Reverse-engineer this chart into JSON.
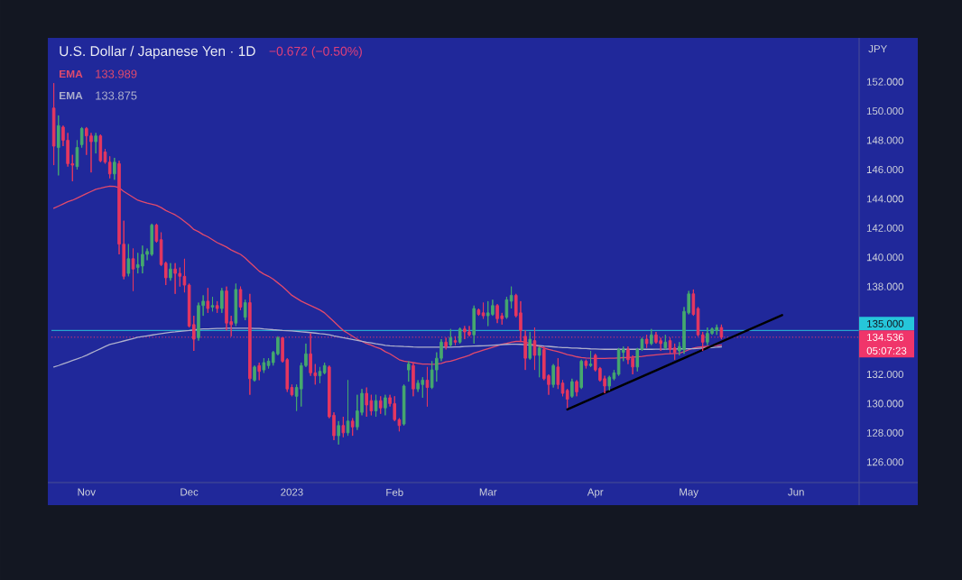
{
  "chart_data": {
    "type": "candlestick",
    "title": "U.S. Dollar / Japanese Yen · 1D",
    "subtitle": "−0.672 (−0.50%)",
    "ylabel": "JPY",
    "categories": [
      null,
      null,
      null,
      null,
      null,
      null,
      null,
      "Nov",
      null,
      null,
      null,
      null,
      null,
      null,
      null,
      null,
      null,
      null,
      null,
      null,
      null,
      null,
      null,
      null,
      null,
      null,
      null,
      null,
      null,
      "Dec",
      null,
      null,
      null,
      null,
      null,
      null,
      null,
      null,
      null,
      null,
      null,
      null,
      null,
      null,
      null,
      null,
      null,
      null,
      null,
      null,
      null,
      "2023",
      null,
      null,
      null,
      null,
      null,
      null,
      null,
      null,
      null,
      null,
      null,
      null,
      null,
      null,
      null,
      null,
      null,
      null,
      null,
      null,
      null,
      "Feb",
      null,
      null,
      null,
      null,
      null,
      null,
      null,
      null,
      null,
      null,
      null,
      null,
      null,
      null,
      null,
      null,
      null,
      null,
      null,
      "Mar",
      null,
      null,
      null,
      null,
      null,
      null,
      null,
      null,
      null,
      null,
      null,
      null,
      null,
      null,
      null,
      null,
      null,
      null,
      null,
      null,
      null,
      null,
      "Apr",
      null,
      null,
      null,
      null,
      null,
      null,
      null,
      null,
      null,
      null,
      null,
      null,
      null,
      null,
      null,
      null,
      null,
      null,
      null,
      "May",
      null,
      null,
      null,
      null,
      null,
      null,
      null,
      null,
      null,
      null,
      null,
      null,
      null,
      null,
      null,
      null,
      null,
      null,
      null,
      null,
      null,
      null,
      "Jun",
      null,
      null,
      null,
      null,
      null,
      null,
      null,
      null,
      null,
      null,
      null,
      null,
      null
    ],
    "ohlc": [
      [
        150.2,
        151.9,
        146.3,
        147.6
      ],
      [
        147.5,
        149.7,
        145.6,
        149.0
      ],
      [
        148.9,
        149.0,
        147.6,
        148.0
      ],
      [
        148.0,
        148.5,
        146.2,
        146.4
      ],
      [
        146.4,
        147.0,
        145.2,
        146.3
      ],
      [
        146.2,
        148.0,
        146.0,
        147.5
      ],
      [
        147.7,
        148.9,
        147.5,
        148.8
      ],
      [
        148.8,
        148.9,
        147.0,
        148.3
      ],
      [
        148.3,
        148.5,
        145.8,
        147.9
      ],
      [
        147.9,
        148.5,
        147.1,
        148.3
      ],
      [
        148.3,
        148.4,
        146.5,
        146.6
      ],
      [
        147.2,
        147.4,
        146.4,
        146.5
      ],
      [
        146.5,
        146.9,
        145.4,
        145.7
      ],
      [
        145.7,
        146.8,
        145.3,
        146.5
      ],
      [
        146.4,
        146.6,
        140.2,
        140.9
      ],
      [
        140.9,
        142.5,
        138.5,
        138.7
      ],
      [
        138.9,
        140.9,
        138.7,
        139.9
      ],
      [
        139.9,
        140.6,
        137.7,
        139.2
      ],
      [
        139.3,
        140.3,
        138.9,
        139.5
      ],
      [
        139.4,
        140.8,
        138.9,
        140.2
      ],
      [
        140.2,
        140.6,
        139.8,
        140.4
      ],
      [
        140.2,
        142.3,
        140.1,
        142.2
      ],
      [
        142.2,
        142.3,
        141.0,
        141.1
      ],
      [
        141.2,
        141.7,
        139.4,
        139.5
      ],
      [
        139.6,
        139.7,
        138.1,
        138.6
      ],
      [
        138.6,
        139.6,
        138.4,
        139.2
      ],
      [
        139.2,
        139.6,
        137.5,
        138.9
      ],
      [
        138.9,
        139.3,
        138.0,
        138.7
      ],
      [
        138.7,
        139.9,
        137.6,
        138.1
      ],
      [
        138.1,
        138.2,
        135.2,
        135.3
      ],
      [
        135.4,
        136.0,
        133.6,
        134.4
      ],
      [
        134.5,
        136.9,
        134.3,
        136.7
      ],
      [
        136.7,
        137.4,
        136.0,
        137.0
      ],
      [
        137.0,
        137.9,
        136.2,
        136.5
      ],
      [
        136.6,
        137.3,
        136.3,
        136.7
      ],
      [
        136.7,
        137.0,
        136.2,
        136.5
      ],
      [
        136.5,
        137.9,
        136.2,
        137.7
      ],
      [
        137.7,
        138.0,
        135.0,
        135.5
      ],
      [
        135.6,
        136.0,
        134.6,
        135.4
      ],
      [
        135.5,
        138.2,
        135.3,
        137.8
      ],
      [
        137.8,
        138.0,
        136.4,
        136.6
      ],
      [
        135.9,
        137.1,
        135.7,
        136.9
      ],
      [
        136.9,
        137.5,
        130.6,
        131.7
      ],
      [
        131.6,
        132.6,
        131.5,
        132.5
      ],
      [
        132.6,
        132.8,
        131.6,
        132.2
      ],
      [
        132.3,
        133.1,
        132.1,
        132.8
      ],
      [
        132.6,
        133.1,
        132.4,
        132.9
      ],
      [
        132.8,
        133.6,
        132.6,
        133.5
      ],
      [
        133.4,
        134.6,
        133.3,
        134.5
      ],
      [
        134.5,
        134.5,
        132.8,
        132.9
      ],
      [
        133.0,
        133.1,
        130.8,
        131.0
      ],
      [
        131.1,
        131.3,
        130.5,
        130.6
      ],
      [
        130.5,
        131.3,
        129.5,
        131.1
      ],
      [
        131.0,
        132.8,
        129.8,
        132.6
      ],
      [
        132.6,
        134.1,
        132.5,
        133.4
      ],
      [
        133.4,
        134.8,
        131.9,
        132.1
      ],
      [
        132.1,
        132.7,
        131.3,
        131.9
      ],
      [
        131.9,
        132.5,
        131.4,
        132.2
      ],
      [
        132.1,
        132.8,
        132.0,
        132.6
      ],
      [
        132.5,
        132.6,
        129.0,
        129.1
      ],
      [
        129.2,
        129.4,
        127.5,
        127.8
      ],
      [
        127.8,
        128.8,
        127.2,
        128.5
      ],
      [
        128.5,
        129.1,
        127.7,
        128.0
      ],
      [
        128.0,
        131.6,
        127.8,
        128.8
      ],
      [
        128.8,
        129.0,
        127.8,
        128.4
      ],
      [
        128.4,
        130.6,
        128.2,
        129.5
      ],
      [
        129.4,
        131.0,
        129.2,
        130.7
      ],
      [
        130.7,
        131.1,
        129.1,
        129.9
      ],
      [
        130.2,
        130.6,
        129.2,
        129.5
      ],
      [
        129.5,
        130.6,
        129.1,
        130.2
      ],
      [
        130.2,
        130.5,
        129.3,
        129.7
      ],
      [
        129.7,
        130.6,
        129.2,
        130.4
      ],
      [
        130.4,
        130.6,
        129.8,
        130.0
      ],
      [
        130.0,
        130.5,
        128.8,
        128.9
      ],
      [
        128.9,
        129.0,
        128.1,
        128.5
      ],
      [
        128.6,
        131.3,
        128.5,
        131.2
      ],
      [
        132.3,
        132.9,
        131.5,
        132.7
      ],
      [
        132.6,
        132.8,
        130.5,
        131.0
      ],
      [
        131.0,
        131.6,
        130.8,
        131.4
      ],
      [
        131.3,
        131.8,
        130.4,
        131.6
      ],
      [
        131.6,
        132.5,
        129.8,
        131.1
      ],
      [
        131.1,
        132.9,
        131.0,
        132.3
      ],
      [
        132.3,
        133.5,
        131.5,
        133.1
      ],
      [
        133.1,
        134.4,
        132.9,
        134.2
      ],
      [
        134.2,
        134.5,
        133.7,
        133.9
      ],
      [
        134.0,
        135.1,
        133.9,
        134.5
      ],
      [
        134.3,
        134.6,
        134.0,
        134.2
      ],
      [
        134.2,
        135.2,
        134.1,
        135.1
      ],
      [
        135.1,
        135.3,
        134.4,
        134.9
      ],
      [
        134.9,
        135.3,
        134.6,
        134.7
      ],
      [
        134.7,
        136.7,
        134.1,
        136.5
      ],
      [
        136.4,
        136.5,
        136.0,
        136.1
      ],
      [
        136.2,
        136.9,
        135.8,
        136.0
      ],
      [
        136.0,
        137.0,
        135.3,
        136.2
      ],
      [
        136.1,
        137.1,
        136.0,
        136.7
      ],
      [
        136.7,
        136.8,
        135.5,
        135.8
      ],
      [
        136.0,
        136.2,
        135.4,
        135.8
      ],
      [
        135.9,
        137.3,
        135.8,
        137.1
      ],
      [
        137.0,
        138.0,
        136.5,
        137.4
      ],
      [
        137.4,
        137.5,
        135.9,
        136.0
      ],
      [
        136.2,
        137.0,
        134.2,
        135.0
      ],
      [
        134.6,
        135.0,
        132.3,
        133.1
      ],
      [
        133.1,
        134.9,
        133.0,
        134.4
      ],
      [
        134.3,
        135.2,
        132.3,
        133.3
      ],
      [
        133.3,
        133.9,
        131.8,
        133.8
      ],
      [
        133.7,
        133.9,
        131.6,
        131.7
      ],
      [
        131.9,
        132.0,
        130.6,
        131.3
      ],
      [
        131.3,
        132.7,
        131.1,
        132.6
      ],
      [
        132.5,
        133.1,
        131.0,
        131.3
      ],
      [
        131.4,
        131.6,
        130.5,
        130.7
      ],
      [
        130.9,
        131.0,
        129.7,
        130.3
      ],
      [
        130.5,
        131.7,
        130.4,
        131.5
      ],
      [
        131.5,
        131.6,
        130.5,
        130.8
      ],
      [
        131.1,
        133.0,
        131.0,
        132.9
      ],
      [
        132.9,
        133.0,
        132.4,
        132.6
      ],
      [
        132.6,
        133.6,
        132.5,
        132.7
      ],
      [
        133.3,
        133.4,
        132.2,
        132.3
      ],
      [
        132.4,
        132.5,
        131.5,
        131.6
      ],
      [
        131.7,
        131.9,
        130.7,
        131.2
      ],
      [
        131.2,
        131.9,
        130.9,
        131.8
      ],
      [
        131.7,
        132.3,
        131.6,
        132.1
      ],
      [
        132.0,
        133.8,
        131.9,
        133.7
      ],
      [
        133.5,
        133.9,
        132.9,
        133.7
      ],
      [
        133.7,
        133.9,
        132.7,
        133.0
      ],
      [
        133.1,
        133.3,
        132.0,
        132.5
      ],
      [
        132.5,
        133.8,
        132.2,
        133.7
      ],
      [
        133.7,
        134.5,
        133.6,
        134.4
      ],
      [
        134.4,
        134.7,
        133.8,
        134.1
      ],
      [
        134.1,
        135.1,
        134.0,
        134.7
      ],
      [
        134.7,
        134.9,
        134.1,
        134.2
      ],
      [
        134.3,
        134.5,
        133.6,
        134.1
      ],
      [
        133.8,
        134.7,
        133.7,
        134.2
      ],
      [
        134.3,
        134.5,
        133.4,
        133.7
      ],
      [
        133.8,
        134.1,
        133.0,
        133.5
      ],
      [
        133.6,
        134.2,
        133.3,
        133.9
      ],
      [
        133.7,
        136.6,
        133.4,
        136.3
      ],
      [
        136.2,
        137.7,
        136.1,
        137.5
      ],
      [
        137.5,
        137.8,
        136.0,
        136.1
      ],
      [
        136.5,
        136.6,
        134.6,
        134.7
      ],
      [
        134.7,
        134.9,
        133.6,
        134.2
      ],
      [
        134.2,
        135.2,
        134.0,
        134.8
      ],
      [
        134.8,
        135.2,
        134.7,
        135.1
      ],
      [
        135.0,
        135.4,
        134.7,
        135.2
      ],
      [
        135.2,
        135.4,
        134.4,
        134.536
      ],
      null,
      null,
      null,
      null,
      null,
      null,
      null,
      null,
      null,
      null,
      null,
      null,
      null,
      null,
      null,
      null,
      null,
      null,
      null,
      null,
      null,
      null,
      null,
      null,
      null,
      null,
      null,
      null,
      null
    ],
    "colors": [
      "#e6375f",
      "#45a96e",
      "#e6375f",
      "#e6375f",
      "#e6375f",
      "#45a96e",
      "#45a96e",
      "#e6375f",
      "#e6375f",
      "#45a96e",
      "#e6375f",
      "#e6375f",
      "#e6375f",
      "#45a96e",
      "#e6375f",
      "#e6375f",
      "#45a96e",
      "#e6375f",
      "#45a96e",
      "#45a96e",
      "#45a96e",
      "#45a96e",
      "#e6375f",
      "#e6375f",
      "#e6375f",
      "#45a96e",
      "#e6375f",
      "#e6375f",
      "#e6375f",
      "#e6375f",
      "#e6375f",
      "#45a96e",
      "#45a96e",
      "#e6375f",
      "#45a96e",
      "#e6375f",
      "#45a96e",
      "#e6375f",
      "#e6375f",
      "#45a96e",
      "#e6375f",
      "#45a96e",
      "#e6375f",
      "#45a96e",
      "#e6375f",
      "#45a96e",
      "#45a96e",
      "#45a96e",
      "#45a96e",
      "#e6375f",
      "#e6375f",
      "#e6375f",
      "#45a96e",
      "#45a96e",
      "#45a96e",
      "#e6375f",
      "#e6375f",
      "#45a96e",
      "#45a96e",
      "#e6375f",
      "#e6375f",
      "#45a96e",
      "#e6375f",
      "#45a96e",
      "#e6375f",
      "#45a96e",
      "#45a96e",
      "#e6375f",
      "#e6375f",
      "#45a96e",
      "#e6375f",
      "#45a96e",
      "#e6375f",
      "#e6375f",
      "#e6375f",
      "#45a96e",
      "#45a96e",
      "#e6375f",
      "#45a96e",
      "#45a96e",
      "#e6375f",
      "#45a96e",
      "#45a96e",
      "#45a96e",
      "#e6375f",
      "#45a96e",
      "#e6375f",
      "#45a96e",
      "#e6375f",
      "#e6375f",
      "#45a96e",
      "#e6375f",
      "#e6375f",
      "#45a96e",
      "#45a96e",
      "#e6375f",
      "#e6375f",
      "#45a96e",
      "#45a96e",
      "#e6375f",
      "#e6375f",
      "#e6375f",
      "#45a96e",
      "#e6375f",
      "#45a96e",
      "#e6375f",
      "#e6375f",
      "#45a96e",
      "#e6375f",
      "#e6375f",
      "#e6375f",
      "#45a96e",
      "#e6375f",
      "#45a96e",
      "#e6375f",
      "#45a96e",
      "#e6375f",
      "#e6375f",
      "#e6375f",
      "#45a96e",
      "#45a96e",
      "#45a96e",
      "#45a96e",
      "#e6375f",
      "#e6375f",
      "#45a96e",
      "#45a96e",
      "#e6375f",
      "#45a96e",
      "#e6375f",
      "#e6375f",
      "#45a96e",
      "#e6375f",
      "#e6375f",
      "#45a96e",
      "#45a96e",
      "#45a96e",
      "#e6375f",
      "#e6375f",
      "#e6375f",
      "#45a96e",
      "#45a96e",
      "#45a96e",
      "#e6375f",
      null,
      null,
      null,
      null,
      null,
      null,
      null,
      null,
      null,
      null,
      null,
      null,
      null,
      null,
      null,
      null,
      null,
      null,
      null,
      null,
      null,
      null,
      null,
      null,
      null,
      null,
      null,
      null,
      null
    ],
    "series": [
      {
        "name": "EMA",
        "type": "line",
        "color": "#e24a6c",
        "values": [
          143.35,
          143.5,
          143.65,
          143.8,
          143.9,
          144.05,
          144.2,
          144.35,
          144.5,
          144.65,
          144.72,
          144.8,
          144.86,
          144.85,
          144.75,
          144.5,
          144.3,
          144.1,
          143.9,
          143.8,
          143.7,
          143.63,
          143.55,
          143.4,
          143.2,
          143.05,
          142.9,
          142.7,
          142.45,
          142.2,
          141.9,
          141.75,
          141.55,
          141.4,
          141.2,
          141.0,
          140.85,
          140.7,
          140.5,
          140.35,
          140.2,
          139.95,
          139.65,
          139.35,
          139.05,
          138.85,
          138.7,
          138.5,
          138.25,
          138.0,
          137.7,
          137.4,
          137.2,
          137.0,
          136.85,
          136.7,
          136.55,
          136.4,
          136.2,
          135.9,
          135.6,
          135.3,
          135.0,
          134.8,
          134.6,
          134.4,
          134.25,
          134.1,
          134.0,
          133.85,
          133.75,
          133.55,
          133.4,
          133.2,
          133.0,
          132.9,
          132.85,
          132.8,
          132.75,
          132.7,
          132.7,
          132.68,
          132.7,
          132.75,
          132.85,
          132.9,
          133.0,
          133.1,
          133.2,
          133.3,
          133.45,
          133.55,
          133.65,
          133.75,
          133.85,
          133.95,
          134.05,
          134.12,
          134.2,
          134.25,
          134.26,
          134.2,
          134.1,
          134.0,
          133.9,
          133.8,
          133.7,
          133.62,
          133.55,
          133.45,
          133.35,
          133.28,
          133.2,
          133.15,
          133.12,
          133.1,
          133.09,
          133.09,
          133.09,
          133.1,
          133.1,
          133.12,
          133.14,
          133.15,
          133.17,
          133.2,
          133.23,
          133.27,
          133.3,
          133.33,
          133.36,
          133.39,
          133.41,
          133.43,
          133.44,
          133.55,
          133.68,
          133.79,
          133.85,
          133.88,
          133.91,
          133.94,
          133.97,
          133.99,
          null,
          null,
          null,
          null,
          null,
          null,
          null,
          null,
          null,
          null,
          null,
          null,
          null,
          null,
          null,
          null,
          null,
          null,
          null,
          null,
          null,
          null,
          null,
          null,
          null,
          null,
          null,
          null,
          null
        ]
      },
      {
        "name": "EMA",
        "type": "line",
        "color": "#aeb0cc",
        "values": [
          132.5,
          132.6,
          132.72,
          132.83,
          132.94,
          133.05,
          133.17,
          133.3,
          133.45,
          133.6,
          133.75,
          133.9,
          134.04,
          134.12,
          134.2,
          134.28,
          134.36,
          134.44,
          134.53,
          134.58,
          134.63,
          134.68,
          134.73,
          134.78,
          134.83,
          134.87,
          134.9,
          134.94,
          134.97,
          135.0,
          135.04,
          135.08,
          135.1,
          135.11,
          135.12,
          135.13,
          135.14,
          135.15,
          135.15,
          135.15,
          135.15,
          135.15,
          135.15,
          135.14,
          135.13,
          135.1,
          135.08,
          135.05,
          135.03,
          135.0,
          134.98,
          134.96,
          134.94,
          134.91,
          134.88,
          134.85,
          134.82,
          134.78,
          134.75,
          134.7,
          134.63,
          134.57,
          134.5,
          134.44,
          134.38,
          134.32,
          134.26,
          134.2,
          134.15,
          134.09,
          134.04,
          133.98,
          133.95,
          133.93,
          133.92,
          133.9,
          133.89,
          133.87,
          133.86,
          133.86,
          133.85,
          133.85,
          133.85,
          133.85,
          133.85,
          133.86,
          133.87,
          133.88,
          133.9,
          133.92,
          133.93,
          133.94,
          133.95,
          133.97,
          133.99,
          134.01,
          134.03,
          134.05,
          134.06,
          134.06,
          134.05,
          134.03,
          134.0,
          133.98,
          133.96,
          133.93,
          133.91,
          133.88,
          133.85,
          133.83,
          133.82,
          133.8,
          133.79,
          133.77,
          133.76,
          133.74,
          133.73,
          133.72,
          133.71,
          133.71,
          133.71,
          133.71,
          133.71,
          133.71,
          133.71,
          133.71,
          133.71,
          133.71,
          133.71,
          133.72,
          133.72,
          133.72,
          133.73,
          133.73,
          133.74,
          133.74,
          133.75,
          133.75,
          133.77,
          133.79,
          133.81,
          133.83,
          133.85,
          133.88,
          null,
          null,
          null,
          null,
          null,
          null,
          null,
          null,
          null,
          null,
          null,
          null,
          null,
          null,
          null,
          null,
          null,
          null,
          null,
          null,
          null,
          null,
          null,
          null,
          null,
          null,
          null,
          null,
          null
        ]
      },
      {
        "type": "line",
        "color": "#000000",
        "values": [
          null,
          null,
          null,
          null,
          null,
          null,
          null,
          null,
          null,
          null,
          null,
          null,
          null,
          null,
          null,
          null,
          null,
          null,
          null,
          null,
          null,
          null,
          null,
          null,
          null,
          null,
          null,
          null,
          null,
          null,
          null,
          null,
          null,
          null,
          null,
          null,
          null,
          null,
          null,
          null,
          null,
          null,
          null,
          null,
          null,
          null,
          null,
          null,
          null,
          null,
          null,
          null,
          null,
          null,
          null,
          null,
          null,
          null,
          null,
          null,
          null,
          null,
          null,
          null,
          null,
          null,
          null,
          null,
          null,
          null,
          null,
          null,
          null,
          null,
          null,
          null,
          null,
          null,
          null,
          null,
          null,
          null,
          null,
          null,
          null,
          null,
          null,
          null,
          null,
          null,
          null,
          null,
          null,
          null,
          null,
          null,
          null,
          null,
          null,
          null,
          null,
          null,
          null,
          null,
          null,
          null,
          null,
          null,
          null,
          null,
          129.6,
          null,
          null,
          null,
          null,
          null,
          null,
          null,
          null,
          null,
          null,
          null,
          null,
          null,
          null,
          null,
          null,
          null,
          null,
          null,
          null,
          null,
          null,
          null,
          null,
          null,
          null,
          null,
          null,
          null,
          null,
          null,
          null,
          null,
          null,
          null,
          null,
          null,
          null,
          null,
          null,
          null,
          null,
          null,
          null,
          null,
          136.05,
          null,
          null,
          null,
          null,
          null,
          null,
          null,
          null,
          null,
          null,
          null,
          null,
          null,
          null,
          null,
          null
        ]
      }
    ],
    "ylim": [
      124.6,
      155.0
    ],
    "yticks": [
      {
        "value": 126,
        "label": "126.000"
      },
      {
        "value": 128,
        "label": "128.000"
      },
      {
        "value": 130,
        "label": "130.000"
      },
      {
        "value": 132,
        "label": "132.000"
      },
      {
        "value": 138,
        "label": "138.000"
      },
      {
        "value": 140,
        "label": "140.000"
      },
      {
        "value": 142,
        "label": "142.000"
      },
      {
        "value": 144,
        "label": "144.000"
      },
      {
        "value": 146,
        "label": "146.000"
      },
      {
        "value": 148,
        "label": "148.000"
      },
      {
        "value": 150,
        "label": "150.000"
      },
      {
        "value": 152,
        "label": "152.000"
      }
    ],
    "ref_lines": [
      {
        "axis": "y",
        "value": 135,
        "label": "135.000",
        "color": "#26c6da"
      },
      {
        "axis": "y",
        "value": 134.536,
        "label": "134.536",
        "color": "#f0356a",
        "line_style": "dotted"
      }
    ],
    "annotations": [
      "133.989",
      "133.875",
      "05:07:23"
    ],
    "legend": "top left"
  }
}
